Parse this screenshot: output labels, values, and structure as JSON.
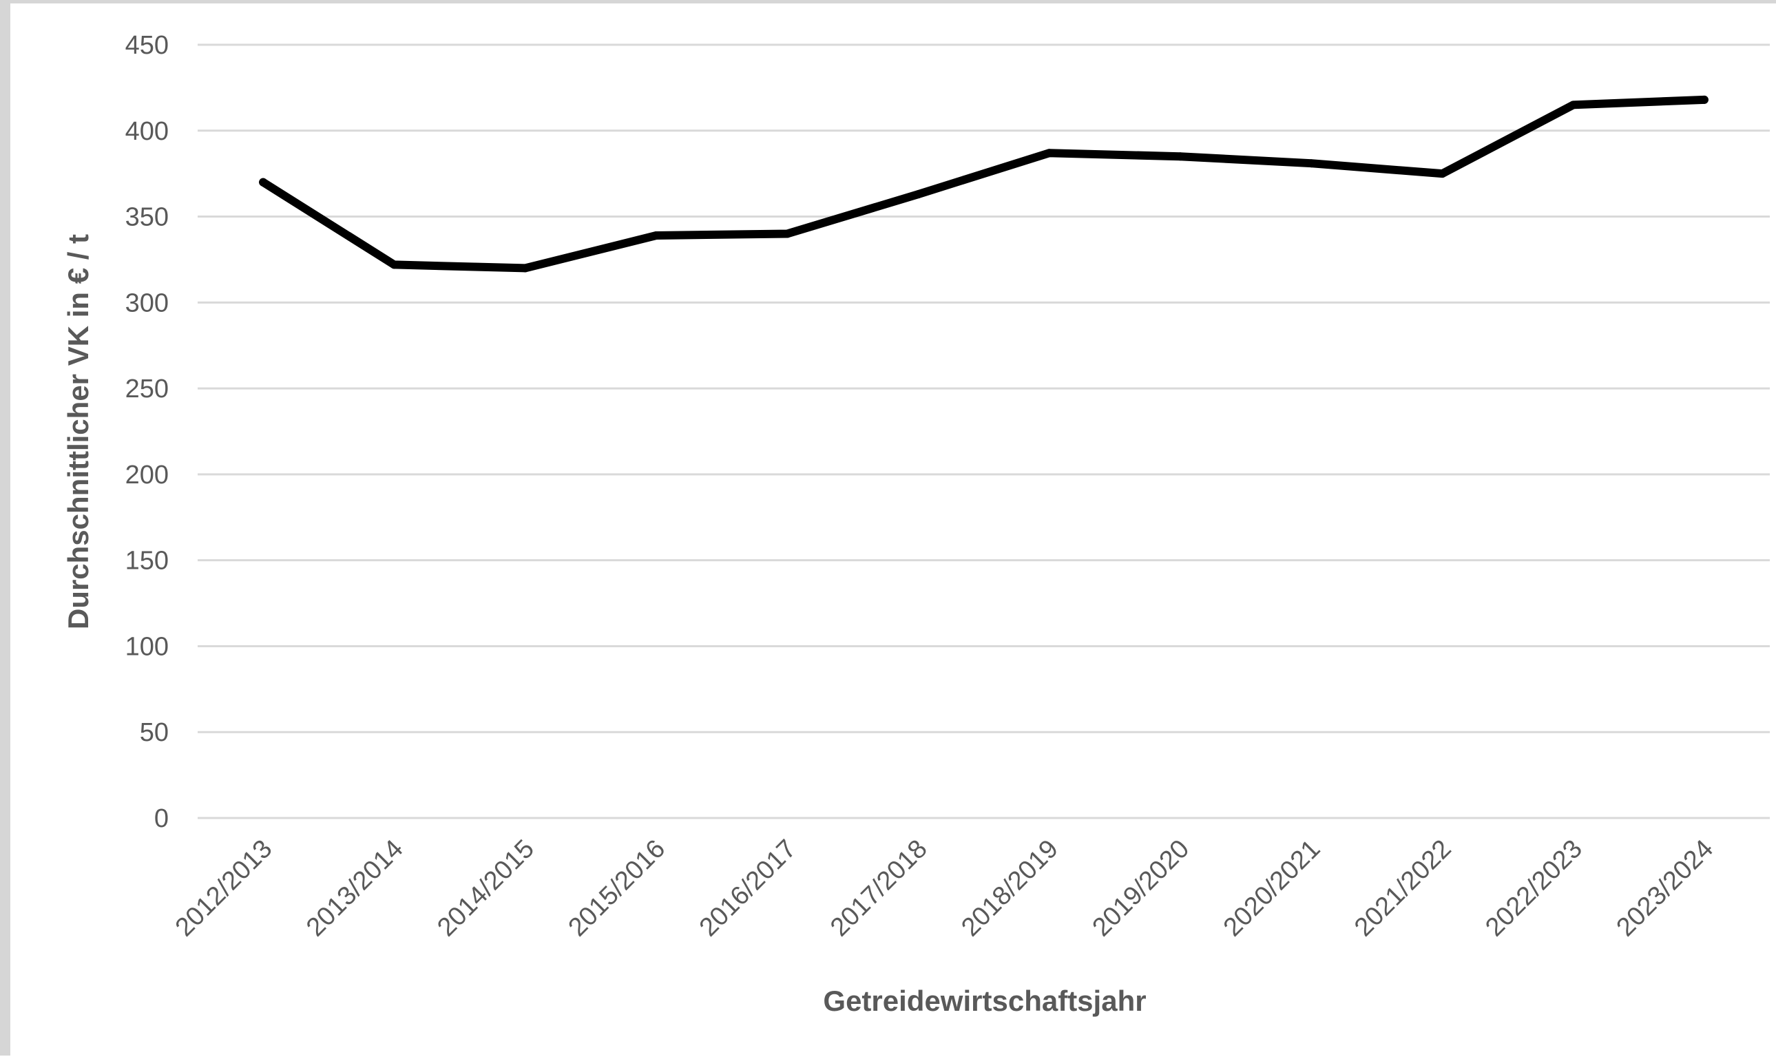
{
  "chart_data": {
    "type": "line",
    "categories": [
      "2012/2013",
      "2013/2014",
      "2014/2015",
      "2015/2016",
      "2016/2017",
      "2017/2018",
      "2018/2019",
      "2019/2020",
      "2020/2021",
      "2021/2022",
      "2022/2023",
      "2023/2024"
    ],
    "series": [
      {
        "values": [
          370,
          322,
          320,
          339,
          340,
          363,
          387,
          385,
          381,
          375,
          415,
          418
        ]
      }
    ],
    "xlabel": "Getreidewirtschaftsjahr",
    "ylabel": "Durchschnittlicher VK in € / t",
    "ylim": [
      0,
      450
    ],
    "yticks": [
      0,
      50,
      100,
      150,
      200,
      250,
      300,
      350,
      400,
      450
    ],
    "grid": true,
    "legend": "none",
    "colors": {
      "series": "#000000",
      "grid": "#d9d9d9",
      "text": "#595959"
    }
  }
}
